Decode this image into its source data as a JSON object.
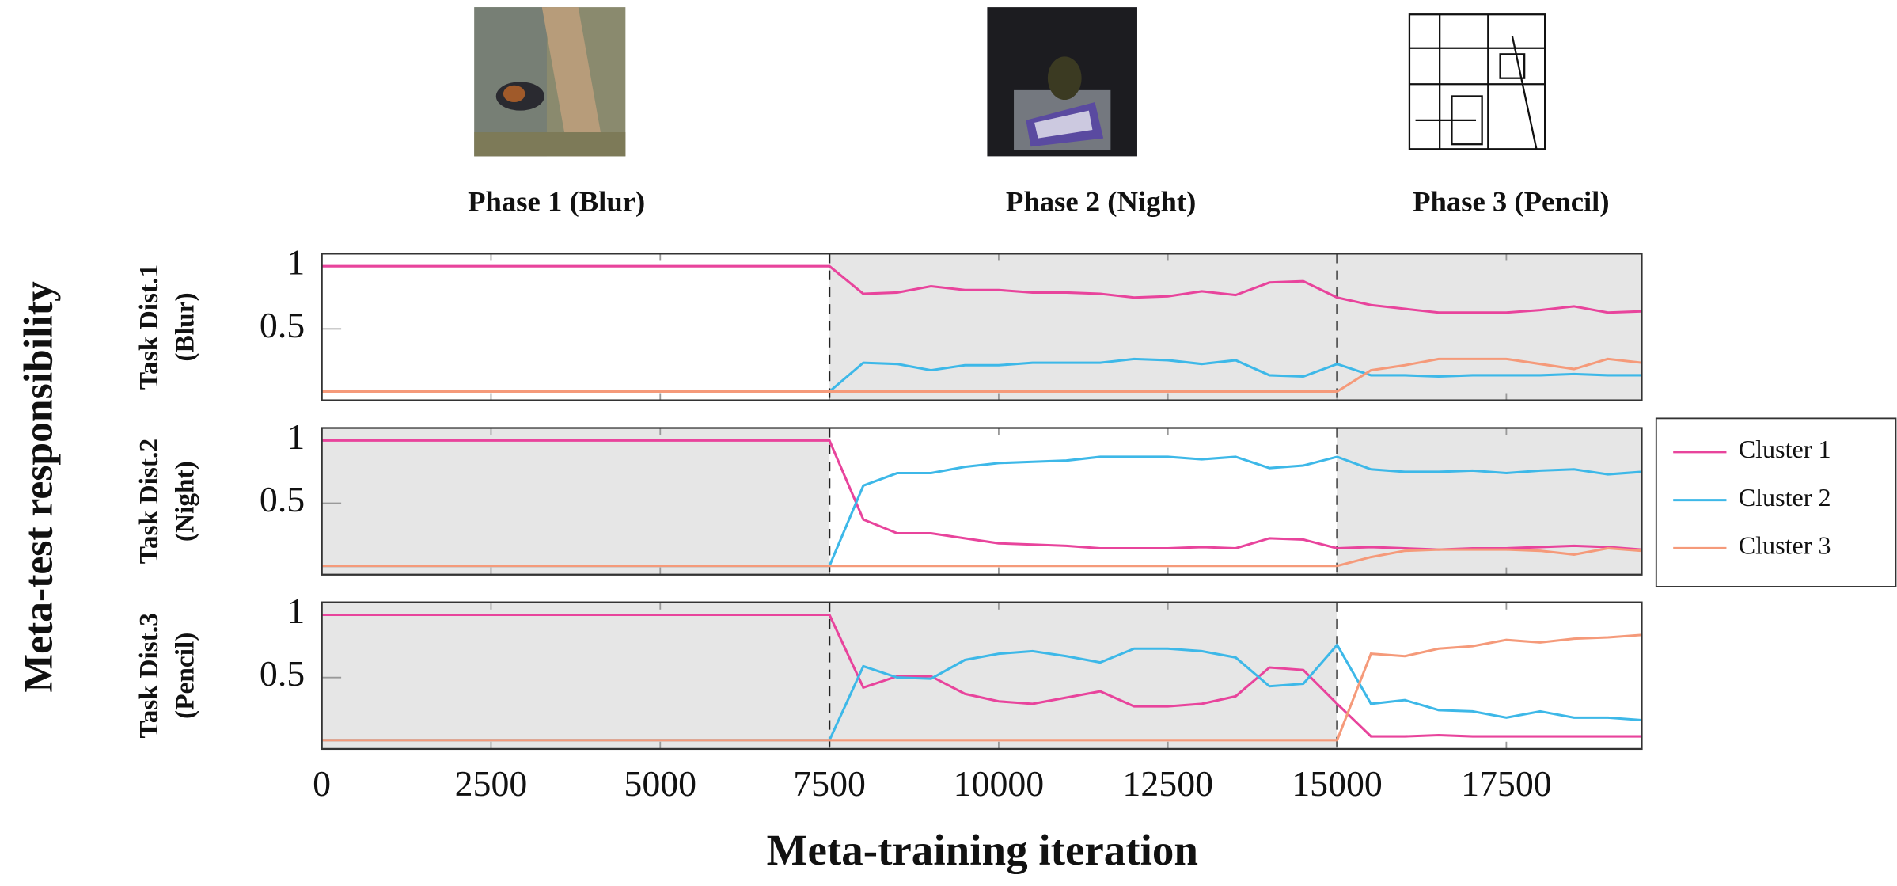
{
  "figure": {
    "ylabel": "Meta-test responsibility",
    "xlabel": "Meta-training iteration",
    "phases": [
      "Phase 1 (Blur)",
      "Phase 2 (Night)",
      "Phase 3 (Pencil)"
    ],
    "phase_boundaries": [
      7500,
      15000
    ],
    "x": [
      0,
      7500,
      8000,
      8500,
      9000,
      9500,
      10000,
      10500,
      11000,
      11500,
      12000,
      12500,
      13000,
      13500,
      14000,
      14500,
      15000,
      15500,
      16000,
      16500,
      17000,
      17500,
      18000,
      18500,
      19000,
      19500
    ],
    "xlim": [
      0,
      19500
    ],
    "xticks": [
      0,
      2500,
      5000,
      7500,
      10000,
      12500,
      15000,
      17500
    ],
    "legend_position": "right",
    "legend": [
      {
        "name": "Cluster 1",
        "color": "#e8449c"
      },
      {
        "name": "Cluster 2",
        "color": "#3db8e8"
      },
      {
        "name": "Cluster 3",
        "color": "#f59a7a"
      }
    ]
  },
  "chart_data": [
    {
      "type": "line",
      "ylabel": [
        "Task Dist.1",
        "(Blur)"
      ],
      "ylim": [
        -0.07,
        1.1
      ],
      "yticks": [
        0.5,
        1
      ],
      "shaded": [
        [
          7500,
          19500
        ]
      ],
      "series": [
        {
          "values": [
            1,
            1,
            0.78,
            0.79,
            0.84,
            0.81,
            0.81,
            0.79,
            0.79,
            0.78,
            0.75,
            0.76,
            0.8,
            0.77,
            0.87,
            0.88,
            0.75,
            0.69,
            0.66,
            0.63,
            0.63,
            0.63,
            0.65,
            0.68,
            0.63,
            0.64
          ]
        },
        {
          "values": [
            0,
            0,
            0.23,
            0.22,
            0.17,
            0.21,
            0.21,
            0.23,
            0.23,
            0.23,
            0.26,
            0.25,
            0.22,
            0.25,
            0.13,
            0.12,
            0.22,
            0.13,
            0.13,
            0.12,
            0.13,
            0.13,
            0.13,
            0.14,
            0.13,
            0.13
          ]
        },
        {
          "values": [
            0,
            0,
            0,
            0,
            0,
            0,
            0,
            0,
            0,
            0,
            0,
            0,
            0,
            0,
            0,
            0,
            0,
            0.17,
            0.21,
            0.26,
            0.26,
            0.26,
            0.22,
            0.18,
            0.26,
            0.23
          ]
        }
      ]
    },
    {
      "type": "line",
      "ylabel": [
        "Task Dist.2",
        "(Night)"
      ],
      "ylim": [
        -0.07,
        1.1
      ],
      "yticks": [
        0.5,
        1
      ],
      "shaded": [
        [
          0,
          7500
        ],
        [
          15000,
          19500
        ]
      ],
      "series": [
        {
          "values": [
            1,
            1,
            0.37,
            0.26,
            0.26,
            0.22,
            0.18,
            0.17,
            0.16,
            0.14,
            0.14,
            0.14,
            0.15,
            0.14,
            0.22,
            0.21,
            0.14,
            0.15,
            0.14,
            0.13,
            0.14,
            0.14,
            0.15,
            0.16,
            0.15,
            0.13
          ]
        },
        {
          "values": [
            0,
            0,
            0.64,
            0.74,
            0.74,
            0.79,
            0.82,
            0.83,
            0.84,
            0.87,
            0.87,
            0.87,
            0.85,
            0.87,
            0.78,
            0.8,
            0.87,
            0.77,
            0.75,
            0.75,
            0.76,
            0.74,
            0.76,
            0.77,
            0.73,
            0.75
          ]
        },
        {
          "values": [
            0,
            0,
            0,
            0,
            0,
            0,
            0,
            0,
            0,
            0,
            0,
            0,
            0,
            0,
            0,
            0,
            0,
            0.07,
            0.12,
            0.13,
            0.13,
            0.13,
            0.12,
            0.09,
            0.14,
            0.12
          ]
        }
      ]
    },
    {
      "type": "line",
      "ylabel": [
        "Task Dist.3",
        "(Pencil)"
      ],
      "ylim": [
        -0.07,
        1.1
      ],
      "yticks": [
        0.5,
        1
      ],
      "shaded": [
        [
          0,
          15000
        ]
      ],
      "series": [
        {
          "values": [
            1,
            1,
            0.42,
            0.51,
            0.51,
            0.37,
            0.31,
            0.29,
            0.34,
            0.39,
            0.27,
            0.27,
            0.29,
            0.35,
            0.58,
            0.56,
            0.29,
            0.03,
            0.03,
            0.04,
            0.03,
            0.03,
            0.03,
            0.03,
            0.03,
            0.03
          ]
        },
        {
          "values": [
            0,
            0,
            0.59,
            0.5,
            0.49,
            0.64,
            0.69,
            0.71,
            0.67,
            0.62,
            0.73,
            0.73,
            0.71,
            0.66,
            0.43,
            0.45,
            0.76,
            0.29,
            0.32,
            0.24,
            0.23,
            0.18,
            0.23,
            0.18,
            0.18,
            0.16
          ]
        },
        {
          "values": [
            0,
            0,
            0,
            0,
            0,
            0,
            0,
            0,
            0,
            0,
            0,
            0,
            0,
            0,
            0,
            0,
            0,
            0.69,
            0.67,
            0.73,
            0.75,
            0.8,
            0.78,
            0.81,
            0.82,
            0.84
          ]
        }
      ]
    }
  ]
}
